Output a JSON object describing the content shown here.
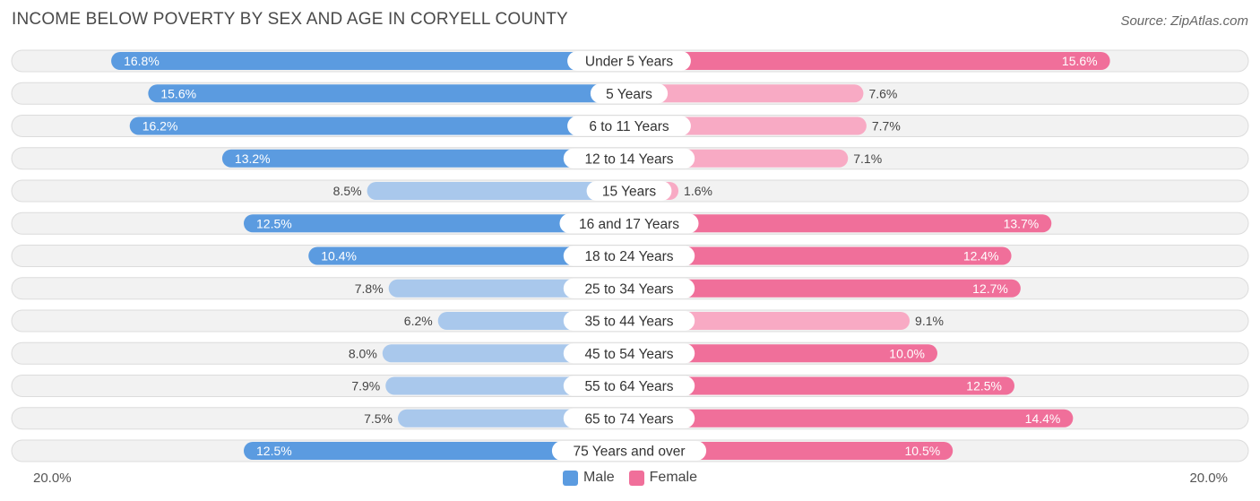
{
  "header": {
    "title": "INCOME BELOW POVERTY BY SEX AND AGE IN CORYELL COUNTY",
    "source": "Source: ZipAtlas.com"
  },
  "axis": {
    "left_label": "20.0%",
    "right_label": "20.0%"
  },
  "legend": {
    "male_label": "Male",
    "female_label": "Female"
  },
  "colors": {
    "male_strong": "#5b9be0",
    "male_light": "#a9c8ec",
    "female_strong": "#f06f9a",
    "female_light": "#f8aac4",
    "track": "#f2f2f2",
    "track_border": "#dcdcdc"
  },
  "chart_data": {
    "type": "bar",
    "title": "INCOME BELOW POVERTY BY SEX AND AGE IN CORYELL COUNTY",
    "orientation": "horizontal-diverging",
    "xlim": [
      -20,
      20
    ],
    "unit": "%",
    "categories": [
      "Under 5 Years",
      "5 Years",
      "6 to 11 Years",
      "12 to 14 Years",
      "15 Years",
      "16 and 17 Years",
      "18 to 24 Years",
      "25 to 34 Years",
      "35 to 44 Years",
      "45 to 54 Years",
      "55 to 64 Years",
      "65 to 74 Years",
      "75 Years and over"
    ],
    "series": [
      {
        "name": "Male",
        "values": [
          16.8,
          15.6,
          16.2,
          13.2,
          8.5,
          12.5,
          10.4,
          7.8,
          6.2,
          8.0,
          7.9,
          7.5,
          12.5
        ],
        "labels": [
          "16.8%",
          "15.6%",
          "16.2%",
          "13.2%",
          "8.5%",
          "12.5%",
          "10.4%",
          "7.8%",
          "6.2%",
          "8.0%",
          "7.9%",
          "7.5%",
          "12.5%"
        ]
      },
      {
        "name": "Female",
        "values": [
          15.6,
          7.6,
          7.7,
          7.1,
          1.6,
          13.7,
          12.4,
          12.7,
          9.1,
          10.0,
          12.5,
          14.4,
          10.5
        ],
        "labels": [
          "15.6%",
          "7.6%",
          "7.7%",
          "7.1%",
          "1.6%",
          "13.7%",
          "12.4%",
          "12.7%",
          "9.1%",
          "10.0%",
          "12.5%",
          "14.4%",
          "10.5%"
        ]
      }
    ],
    "legend_position": "bottom-center"
  }
}
